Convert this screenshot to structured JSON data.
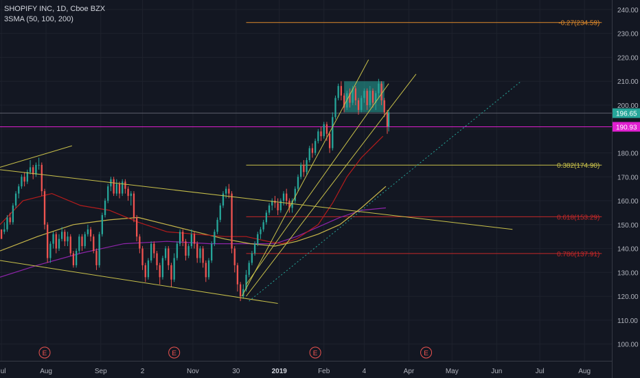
{
  "header": {
    "symbol_line": "SHOPIFY INC, 1D, Cboe BZX",
    "indicator_line": "3SMA (50, 100, 200)"
  },
  "colors": {
    "background": "#131722",
    "grid": "#1e222d",
    "text": "#b2b5be",
    "candle_up": "#26a69a",
    "candle_down": "#ef5350",
    "sma50": "#b71c1c",
    "sma100": "#c9b84a",
    "sma200": "#8e24aa",
    "trendline": "#c9c14a",
    "fib_neg027": "#e08a2b",
    "fib_0382": "#c9c14a",
    "fib_0618": "#c62828",
    "fib_0786": "#c62828",
    "price_label": "#26a69a",
    "magenta_line": "#e11fd0",
    "earnings_marker": "#ef5350",
    "box_fill": "#26a69a"
  },
  "chart_data": {
    "type": "candlestick",
    "title": "SHOPIFY INC, 1D, Cboe BZX",
    "indicators": [
      "SMA 50",
      "SMA 100",
      "SMA 200"
    ],
    "y_axis": {
      "ticks": [
        100,
        110,
        120,
        130,
        140,
        150,
        160,
        170,
        180,
        190,
        200,
        210,
        220,
        230,
        240
      ],
      "tick_labels": [
        "100.00",
        "110.00",
        "120.00",
        "130.00",
        "140.00",
        "150.00",
        "160.00",
        "170.00",
        "180.00",
        "190.00",
        "200.00",
        "210.00",
        "220.00",
        "230.00",
        "240.00"
      ],
      "range": [
        93,
        244
      ]
    },
    "x_axis": {
      "tick_labels": [
        "Jul",
        "Aug",
        "Sep",
        "2",
        "Nov",
        "30",
        "2019",
        "Feb",
        "4",
        "Apr",
        "May",
        "Jun",
        "Jul",
        "Aug"
      ],
      "tick_days": [
        -5,
        26,
        64,
        93,
        128,
        158,
        188,
        219,
        247,
        278,
        308,
        339,
        369,
        400
      ],
      "range": [
        -6,
        419
      ]
    },
    "price_labels": [
      {
        "value": 196.65,
        "text": "196.65"
      },
      {
        "value": 190.93,
        "text": "190.93"
      }
    ],
    "fib_levels": [
      {
        "ratio": "-0.27",
        "value": 234.59,
        "text": "-0.27(234.59)",
        "x_start": 165,
        "x_end": 412
      },
      {
        "ratio": "0.382",
        "value": 174.9,
        "text": "0.382(174.90)",
        "x_start": 165,
        "x_end": 412
      },
      {
        "ratio": "0.618",
        "value": 153.29,
        "text": "0.618(153.29)",
        "x_start": 165,
        "x_end": 412
      },
      {
        "ratio": "0.786",
        "value": 137.91,
        "text": "0.786(137.91)",
        "x_start": 165,
        "x_end": 412
      }
    ],
    "horizontal_lines": [
      {
        "value": 190.93,
        "style": "magenta"
      },
      {
        "value": 196.65,
        "style": "thin"
      }
    ],
    "earnings_markers": [
      {
        "day": 25,
        "text": "E"
      },
      {
        "day": 115,
        "text": "E"
      },
      {
        "day": 213,
        "text": "E"
      },
      {
        "day": 290,
        "text": "E"
      }
    ],
    "consolidation_box": {
      "x_start": 233,
      "x_end": 261,
      "y_low": 197,
      "y_high": 210
    },
    "trendlines": [
      {
        "from": [
          -6,
          174
        ],
        "to": [
          44,
          183
        ],
        "style": "solid"
      },
      {
        "from": [
          -6,
          173
        ],
        "to": [
          350,
          148
        ],
        "style": "solid"
      },
      {
        "from": [
          -6,
          135
        ],
        "to": [
          187,
          117
        ],
        "style": "solid"
      },
      {
        "from": [
          162,
          120
        ],
        "to": [
          250,
          219
        ],
        "style": "solid"
      },
      {
        "from": [
          165,
          120
        ],
        "to": [
          283,
          213
        ],
        "style": "solid"
      },
      {
        "from": [
          165,
          125
        ],
        "to": [
          264,
          209
        ],
        "style": "solid"
      },
      {
        "from": [
          167,
          118
        ],
        "to": [
          356,
          210
        ],
        "style": "dotted"
      }
    ],
    "sma50": [
      [
        -6,
        150
      ],
      [
        10,
        160
      ],
      [
        30,
        163
      ],
      [
        50,
        158
      ],
      [
        70,
        156
      ],
      [
        90,
        151
      ],
      [
        110,
        147
      ],
      [
        130,
        146
      ],
      [
        150,
        145
      ],
      [
        165,
        145
      ],
      [
        180,
        143
      ],
      [
        190,
        142
      ],
      [
        200,
        144
      ],
      [
        215,
        150
      ],
      [
        225,
        159
      ],
      [
        235,
        170
      ],
      [
        245,
        178
      ],
      [
        260,
        187
      ]
    ],
    "sma100": [
      [
        -6,
        139
      ],
      [
        20,
        145
      ],
      [
        45,
        150
      ],
      [
        70,
        152
      ],
      [
        90,
        153
      ],
      [
        110,
        150
      ],
      [
        130,
        147
      ],
      [
        150,
        144
      ],
      [
        168,
        142
      ],
      [
        185,
        141
      ],
      [
        200,
        143
      ],
      [
        215,
        146
      ],
      [
        230,
        150
      ],
      [
        245,
        157
      ],
      [
        262,
        166
      ]
    ],
    "sma200": [
      [
        -6,
        128
      ],
      [
        20,
        133
      ],
      [
        50,
        138
      ],
      [
        80,
        142
      ],
      [
        110,
        143
      ],
      [
        140,
        142
      ],
      [
        165,
        142
      ],
      [
        185,
        142
      ],
      [
        200,
        145
      ],
      [
        215,
        149
      ],
      [
        230,
        153
      ],
      [
        245,
        156
      ],
      [
        262,
        157
      ]
    ],
    "candles": [
      [
        -5,
        148,
        144,
        145,
        147
      ],
      [
        -3,
        147,
        148,
        151,
        146
      ],
      [
        -1,
        148,
        153,
        154,
        147
      ],
      [
        1,
        153,
        151,
        155,
        150
      ],
      [
        3,
        151,
        158,
        159,
        150
      ],
      [
        5,
        158,
        163,
        164,
        157
      ],
      [
        7,
        163,
        166,
        167,
        161
      ],
      [
        9,
        166,
        170,
        171,
        165
      ],
      [
        11,
        170,
        168,
        172,
        166
      ],
      [
        13,
        168,
        172,
        173,
        167
      ],
      [
        15,
        172,
        174,
        177,
        171
      ],
      [
        17,
        174,
        171,
        175,
        169
      ],
      [
        19,
        171,
        175,
        176,
        170
      ],
      [
        21,
        175,
        175,
        178,
        173
      ],
      [
        23,
        175,
        164,
        176,
        162
      ],
      [
        25,
        164,
        150,
        165,
        148
      ],
      [
        27,
        150,
        136,
        151,
        134
      ],
      [
        29,
        136,
        142,
        143,
        134
      ],
      [
        31,
        142,
        146,
        147,
        140
      ],
      [
        33,
        146,
        140,
        147,
        138
      ],
      [
        35,
        140,
        144,
        146,
        139
      ],
      [
        37,
        144,
        147,
        149,
        143
      ],
      [
        39,
        147,
        143,
        148,
        141
      ],
      [
        41,
        143,
        145,
        147,
        141
      ],
      [
        43,
        145,
        138,
        146,
        137
      ],
      [
        45,
        138,
        133,
        139,
        132
      ],
      [
        47,
        133,
        139,
        140,
        132
      ],
      [
        49,
        139,
        145,
        146,
        138
      ],
      [
        51,
        145,
        141,
        146,
        139
      ],
      [
        53,
        141,
        146,
        147,
        140
      ],
      [
        55,
        146,
        148,
        150,
        145
      ],
      [
        57,
        148,
        145,
        149,
        143
      ],
      [
        59,
        145,
        139,
        146,
        138
      ],
      [
        61,
        139,
        133,
        140,
        131
      ],
      [
        63,
        133,
        146,
        147,
        132
      ],
      [
        65,
        146,
        154,
        155,
        145
      ],
      [
        67,
        154,
        160,
        161,
        153
      ],
      [
        69,
        160,
        166,
        167,
        159
      ],
      [
        71,
        166,
        169,
        170,
        164
      ],
      [
        73,
        169,
        163,
        170,
        162
      ],
      [
        75,
        163,
        167,
        169,
        162
      ],
      [
        77,
        167,
        163,
        168,
        161
      ],
      [
        79,
        163,
        168,
        169,
        162
      ],
      [
        81,
        168,
        165,
        169,
        163
      ],
      [
        83,
        165,
        162,
        166,
        160
      ],
      [
        85,
        162,
        163,
        164,
        158
      ],
      [
        87,
        163,
        153,
        164,
        151
      ],
      [
        89,
        153,
        145,
        154,
        143
      ],
      [
        91,
        145,
        140,
        146,
        138
      ],
      [
        93,
        140,
        133,
        141,
        131
      ],
      [
        95,
        133,
        128,
        134,
        126
      ],
      [
        97,
        128,
        135,
        136,
        127
      ],
      [
        99,
        135,
        142,
        143,
        134
      ],
      [
        101,
        142,
        138,
        143,
        136
      ],
      [
        103,
        138,
        133,
        139,
        131
      ],
      [
        105,
        133,
        128,
        134,
        125
      ],
      [
        107,
        128,
        136,
        137,
        127
      ],
      [
        109,
        136,
        140,
        141,
        135
      ],
      [
        111,
        140,
        133,
        141,
        131
      ],
      [
        113,
        133,
        127,
        134,
        124
      ],
      [
        115,
        127,
        136,
        138,
        126
      ],
      [
        117,
        136,
        142,
        143,
        135
      ],
      [
        119,
        142,
        147,
        148,
        141
      ],
      [
        121,
        147,
        143,
        148,
        141
      ],
      [
        123,
        143,
        137,
        144,
        135
      ],
      [
        125,
        137,
        141,
        142,
        136
      ],
      [
        127,
        141,
        146,
        148,
        140
      ],
      [
        129,
        146,
        142,
        147,
        140
      ],
      [
        131,
        142,
        136,
        143,
        134
      ],
      [
        133,
        136,
        140,
        141,
        134
      ],
      [
        135,
        140,
        134,
        141,
        132
      ],
      [
        137,
        134,
        128,
        135,
        126
      ],
      [
        139,
        128,
        135,
        136,
        127
      ],
      [
        141,
        135,
        142,
        143,
        134
      ],
      [
        143,
        142,
        147,
        148,
        141
      ],
      [
        145,
        147,
        152,
        153,
        146
      ],
      [
        147,
        152,
        158,
        159,
        151
      ],
      [
        149,
        158,
        163,
        164,
        157
      ],
      [
        151,
        163,
        165,
        166,
        161
      ],
      [
        153,
        165,
        163,
        167,
        161
      ],
      [
        155,
        163,
        140,
        164,
        138
      ],
      [
        157,
        140,
        133,
        141,
        130
      ],
      [
        159,
        133,
        125,
        134,
        122
      ],
      [
        161,
        125,
        120,
        126,
        118
      ],
      [
        163,
        120,
        123,
        125,
        119
      ],
      [
        165,
        123,
        129,
        131,
        122
      ],
      [
        167,
        129,
        134,
        135,
        128
      ],
      [
        169,
        134,
        138,
        139,
        133
      ],
      [
        171,
        138,
        142,
        143,
        137
      ],
      [
        173,
        142,
        146,
        147,
        141
      ],
      [
        175,
        146,
        148,
        149,
        144
      ],
      [
        177,
        148,
        151,
        152,
        147
      ],
      [
        179,
        151,
        155,
        156,
        150
      ],
      [
        181,
        155,
        158,
        159,
        154
      ],
      [
        183,
        158,
        160,
        161,
        156
      ],
      [
        185,
        160,
        159,
        162,
        157
      ],
      [
        187,
        159,
        156,
        161,
        154
      ],
      [
        189,
        156,
        160,
        161,
        155
      ],
      [
        191,
        160,
        163,
        164,
        158
      ],
      [
        193,
        163,
        160,
        165,
        158
      ],
      [
        195,
        160,
        157,
        161,
        155
      ],
      [
        197,
        157,
        160,
        161,
        155
      ],
      [
        199,
        160,
        165,
        166,
        159
      ],
      [
        201,
        165,
        170,
        171,
        164
      ],
      [
        203,
        170,
        175,
        176,
        169
      ],
      [
        205,
        175,
        172,
        177,
        170
      ],
      [
        207,
        172,
        177,
        178,
        171
      ],
      [
        209,
        177,
        182,
        183,
        176
      ],
      [
        211,
        182,
        180,
        184,
        178
      ],
      [
        213,
        180,
        185,
        186,
        179
      ],
      [
        215,
        185,
        189,
        190,
        184
      ],
      [
        217,
        189,
        187,
        191,
        185
      ],
      [
        219,
        187,
        192,
        193,
        186
      ],
      [
        221,
        192,
        188,
        193,
        185
      ],
      [
        223,
        188,
        182,
        189,
        180
      ],
      [
        225,
        182,
        195,
        197,
        181
      ],
      [
        227,
        195,
        203,
        204,
        194
      ],
      [
        229,
        203,
        208,
        209,
        202
      ],
      [
        231,
        208,
        204,
        210,
        202
      ],
      [
        233,
        204,
        199,
        205,
        197
      ],
      [
        235,
        199,
        205,
        206,
        198
      ],
      [
        237,
        205,
        201,
        207,
        199
      ],
      [
        239,
        201,
        207,
        208,
        200
      ],
      [
        241,
        207,
        202,
        208,
        200
      ],
      [
        243,
        202,
        198,
        203,
        196
      ],
      [
        245,
        198,
        203,
        204,
        197
      ],
      [
        247,
        203,
        206,
        207,
        201
      ],
      [
        249,
        206,
        200,
        207,
        198
      ],
      [
        251,
        200,
        206,
        208,
        199
      ],
      [
        253,
        206,
        201,
        207,
        199
      ],
      [
        255,
        201,
        205,
        206,
        198
      ],
      [
        257,
        205,
        209,
        211,
        203
      ],
      [
        259,
        209,
        202,
        210,
        200
      ],
      [
        261,
        202,
        197,
        203,
        195
      ],
      [
        263,
        197,
        191,
        198,
        188
      ],
      [
        264,
        191,
        197,
        198,
        189
      ]
    ]
  }
}
